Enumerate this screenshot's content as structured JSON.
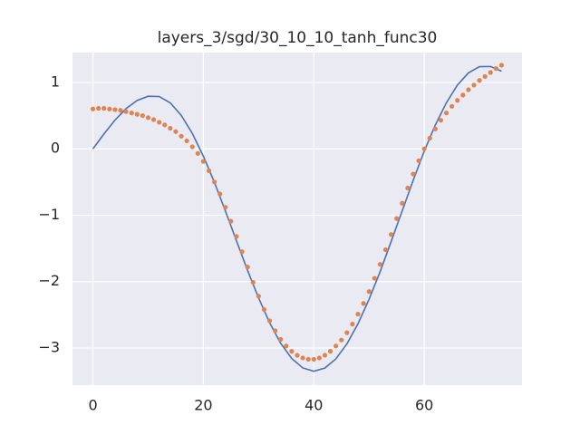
{
  "chart_data": {
    "type": "line",
    "title": "layers_3/sgd/30_10_10_tanh_func30",
    "series": [
      {
        "type": "line",
        "color": "#4c72b0",
        "x": [
          0,
          2,
          4,
          6,
          8,
          10,
          12,
          14,
          16,
          18,
          20,
          22,
          24,
          26,
          28,
          30,
          32,
          34,
          36,
          38,
          40,
          42,
          44,
          46,
          48,
          50,
          52,
          54,
          56,
          58,
          60,
          62,
          64,
          66,
          68,
          70,
          72,
          74
        ],
        "values": [
          0,
          0.225,
          0.433,
          0.605,
          0.728,
          0.792,
          0.788,
          0.692,
          0.503,
          0.232,
          -0.111,
          -0.505,
          -0.939,
          -1.387,
          -1.831,
          -2.246,
          -2.62,
          -2.929,
          -3.159,
          -3.3,
          -3.35,
          -3.303,
          -3.164,
          -2.938,
          -2.635,
          -2.267,
          -1.853,
          -1.397,
          -0.935,
          -0.473,
          -0.036,
          0.358,
          0.693,
          0.96,
          1.144,
          1.238,
          1.24,
          1.17
        ]
      },
      {
        "type": "scatter",
        "color": "#dd8452",
        "x": [
          0,
          1,
          2,
          3,
          4,
          5,
          6,
          7,
          8,
          9,
          10,
          11,
          12,
          13,
          14,
          15,
          16,
          17,
          18,
          19,
          20,
          21,
          22,
          23,
          24,
          25,
          26,
          27,
          28,
          29,
          30,
          31,
          32,
          33,
          34,
          35,
          36,
          37,
          38,
          39,
          40,
          41,
          42,
          43,
          44,
          45,
          46,
          47,
          48,
          49,
          50,
          51,
          52,
          53,
          54,
          55,
          56,
          57,
          58,
          59,
          60,
          61,
          62,
          63,
          64,
          65,
          66,
          67,
          68,
          69,
          70,
          71,
          72,
          73,
          74
        ],
        "values": [
          0.6,
          0.61,
          0.61,
          0.6,
          0.59,
          0.58,
          0.56,
          0.54,
          0.52,
          0.5,
          0.47,
          0.44,
          0.4,
          0.36,
          0.31,
          0.26,
          0.19,
          0.12,
          0.03,
          -0.07,
          -0.19,
          -0.33,
          -0.5,
          -0.68,
          -0.88,
          -1.09,
          -1.32,
          -1.55,
          -1.78,
          -2.01,
          -2.22,
          -2.42,
          -2.59,
          -2.74,
          -2.87,
          -2.97,
          -3.05,
          -3.11,
          -3.15,
          -3.17,
          -3.17,
          -3.15,
          -3.11,
          -3.05,
          -2.97,
          -2.88,
          -2.77,
          -2.64,
          -2.49,
          -2.33,
          -2.15,
          -1.95,
          -1.74,
          -1.52,
          -1.29,
          -1.05,
          -0.82,
          -0.59,
          -0.38,
          -0.18,
          0,
          0.16,
          0.3,
          0.43,
          0.54,
          0.64,
          0.73,
          0.81,
          0.89,
          0.96,
          1.03,
          1.09,
          1.15,
          1.21,
          1.26
        ]
      }
    ],
    "xlim": [
      -3.7,
      77.7
    ],
    "ylim": [
      -3.56,
      1.45
    ],
    "xticks": [
      0,
      20,
      40,
      60
    ],
    "yticks": [
      {
        "value": -3,
        "label": "−3"
      },
      {
        "value": -2,
        "label": "−2"
      },
      {
        "value": -1,
        "label": "−1"
      },
      0,
      1
    ],
    "grid": true,
    "background": "#eaeaf2",
    "grid_color": "#ffffff"
  }
}
